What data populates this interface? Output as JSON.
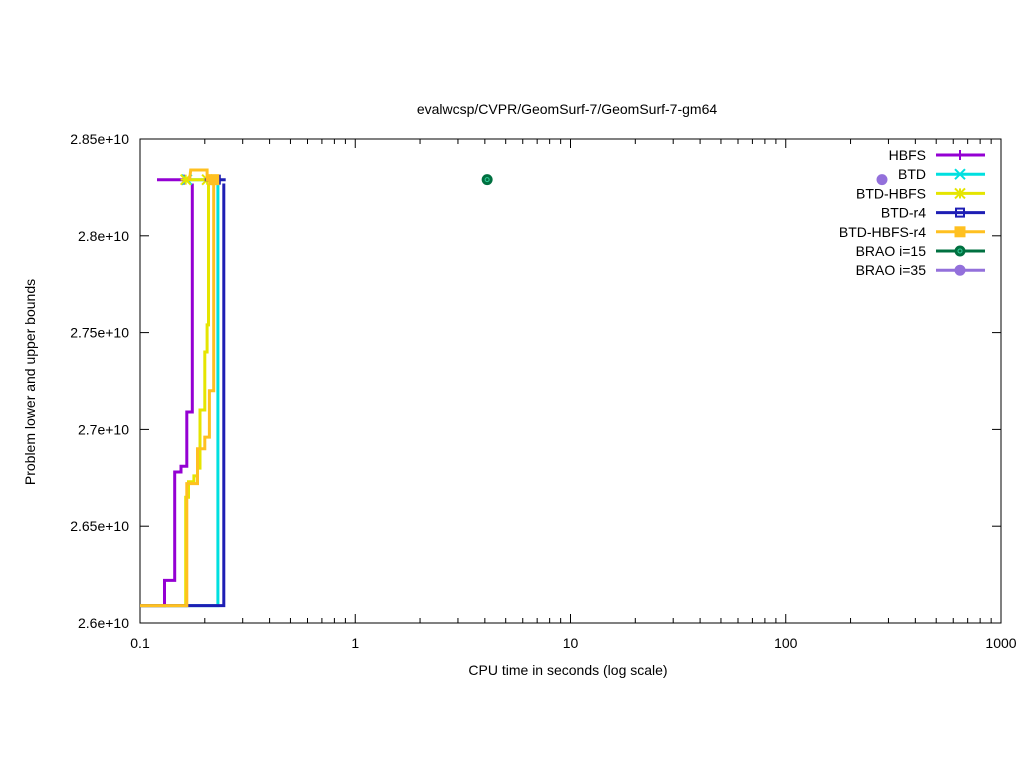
{
  "chart_data": {
    "type": "line",
    "title": "evalwcsp/CVPR/GeomSurf-7/GeomSurf-7-gm64",
    "xlabel": "CPU time in seconds (log scale)",
    "ylabel": "Problem lower and upper bounds",
    "x_scale": "log",
    "xlim": [
      0.1,
      1000
    ],
    "ylim": [
      26000000000,
      28500000000
    ],
    "x_ticks": [
      {
        "value": 0.1,
        "label": "0.1"
      },
      {
        "value": 1,
        "label": "1"
      },
      {
        "value": 10,
        "label": "10"
      },
      {
        "value": 100,
        "label": "100"
      },
      {
        "value": 1000,
        "label": "1000"
      }
    ],
    "y_ticks": [
      {
        "value": 26000000000,
        "label": "2.6e+10"
      },
      {
        "value": 26500000000,
        "label": "2.65e+10"
      },
      {
        "value": 27000000000,
        "label": "2.7e+10"
      },
      {
        "value": 27500000000,
        "label": "2.75e+10"
      },
      {
        "value": 28000000000,
        "label": "2.8e+10"
      },
      {
        "value": 28500000000,
        "label": "2.85e+10"
      }
    ],
    "grid": false,
    "legend_position": "top-right",
    "series": [
      {
        "name": "HBFS",
        "color": "#9400d3",
        "marker": "plus",
        "upper": [
          [
            0.12,
            28290000000
          ],
          [
            0.173,
            28290000000
          ]
        ],
        "lower": [
          [
            0.1,
            26090000000
          ],
          [
            0.13,
            26090000000
          ],
          [
            0.13,
            26220000000
          ],
          [
            0.145,
            26220000000
          ],
          [
            0.145,
            26780000000
          ],
          [
            0.155,
            26780000000
          ],
          [
            0.155,
            26810000000
          ],
          [
            0.165,
            26810000000
          ],
          [
            0.165,
            27090000000
          ],
          [
            0.175,
            27090000000
          ],
          [
            0.175,
            28270000000
          ]
        ],
        "markers": [
          [
            0.16,
            28290000000
          ]
        ]
      },
      {
        "name": "BTD",
        "color": "#00e0e0",
        "marker": "x",
        "upper": [
          [
            0.16,
            28290000000
          ],
          [
            0.23,
            28290000000
          ]
        ],
        "lower": [
          [
            0.1,
            26090000000
          ],
          [
            0.23,
            26090000000
          ],
          [
            0.23,
            28270000000
          ]
        ],
        "markers": [
          [
            0.165,
            28290000000
          ]
        ]
      },
      {
        "name": "BTD-HBFS",
        "color": "#e5e500",
        "marker": "star",
        "upper": [
          [
            0.165,
            28290000000
          ],
          [
            0.22,
            28290000000
          ]
        ],
        "lower": [
          [
            0.1,
            26090000000
          ],
          [
            0.163,
            26090000000
          ],
          [
            0.163,
            26650000000
          ],
          [
            0.168,
            26650000000
          ],
          [
            0.168,
            26730000000
          ],
          [
            0.178,
            26730000000
          ],
          [
            0.178,
            26760000000
          ],
          [
            0.185,
            26760000000
          ],
          [
            0.185,
            26800000000
          ],
          [
            0.19,
            26800000000
          ],
          [
            0.19,
            27100000000
          ],
          [
            0.2,
            27100000000
          ],
          [
            0.2,
            27400000000
          ],
          [
            0.205,
            27400000000
          ],
          [
            0.205,
            27540000000
          ],
          [
            0.208,
            27540000000
          ],
          [
            0.208,
            28270000000
          ]
        ],
        "markers": [
          [
            0.163,
            28290000000
          ],
          [
            0.205,
            28290000000
          ]
        ]
      },
      {
        "name": "BTD-r4",
        "color": "#1e1eb4",
        "marker": "square",
        "upper": [
          [
            0.2,
            28290000000
          ],
          [
            0.25,
            28290000000
          ]
        ],
        "lower": [
          [
            0.1,
            26090000000
          ],
          [
            0.245,
            26090000000
          ],
          [
            0.245,
            28270000000
          ]
        ],
        "markers": [
          [
            0.225,
            28290000000
          ]
        ]
      },
      {
        "name": "BTD-HBFS-r4",
        "color": "#ffc020",
        "marker": "filled-square",
        "upper": [
          [
            0.17,
            28290000000
          ],
          [
            0.172,
            28340000000
          ],
          [
            0.205,
            28340000000
          ],
          [
            0.205,
            28290000000
          ],
          [
            0.23,
            28290000000
          ]
        ],
        "lower": [
          [
            0.1,
            26090000000
          ],
          [
            0.165,
            26090000000
          ],
          [
            0.165,
            26720000000
          ],
          [
            0.185,
            26720000000
          ],
          [
            0.185,
            26900000000
          ],
          [
            0.2,
            26900000000
          ],
          [
            0.2,
            26960000000
          ],
          [
            0.21,
            26960000000
          ],
          [
            0.21,
            27200000000
          ],
          [
            0.22,
            27200000000
          ],
          [
            0.22,
            28270000000
          ]
        ],
        "markers": [
          [
            0.22,
            28290000000
          ]
        ]
      },
      {
        "name": "BRAO i=15",
        "color": "#007040",
        "marker": "circle",
        "upper": [],
        "lower": [],
        "markers": [
          [
            4.1,
            28290000000
          ]
        ]
      },
      {
        "name": "BRAO i=35",
        "color": "#9370db",
        "marker": "filled-circle",
        "upper": [],
        "lower": [],
        "markers": [
          [
            280,
            28290000000
          ]
        ]
      }
    ]
  }
}
